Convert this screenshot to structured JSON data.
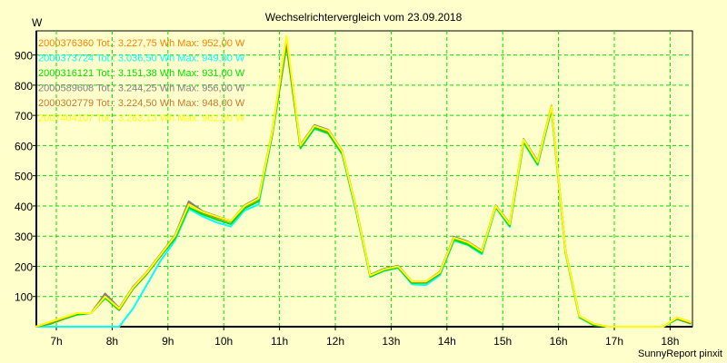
{
  "chart_data": {
    "type": "line",
    "title": "Wechselrichtervergleich vom 23.09.2018",
    "ylabel": "W",
    "xlabel": "",
    "footer": "SunnyReport pinxit",
    "ylim": [
      0,
      980
    ],
    "xlim_hours": [
      6.625,
      18.4
    ],
    "yticks": [
      "100",
      "200",
      "300",
      "400",
      "500",
      "600",
      "700",
      "800",
      "900"
    ],
    "ytick_values": [
      100,
      200,
      300,
      400,
      500,
      600,
      700,
      800,
      900
    ],
    "xticks": [
      "7h",
      "8h",
      "9h",
      "10h",
      "11h",
      "12h",
      "13h",
      "14h",
      "15h",
      "16h",
      "17h",
      "18h"
    ],
    "xtick_values": [
      7,
      8,
      9,
      10,
      11,
      12,
      13,
      14,
      15,
      16,
      17,
      18
    ],
    "grid": true,
    "legend_position": "top-left",
    "x_start_hour": 6.625,
    "x_step_hour": 0.25,
    "series": [
      {
        "name": "2000376360",
        "legend": "2000376360 Tot.: 3.227,75 Wh  Max: 952,00 W",
        "color": "#ff8000",
        "values": [
          0,
          12,
          28,
          45,
          45,
          105,
          58,
          128,
          178,
          238,
          298,
          405,
          378,
          362,
          348,
          398,
          422,
          645,
          952,
          598,
          662,
          645,
          578,
          388,
          170,
          188,
          200,
          148,
          148,
          178,
          292,
          278,
          248,
          398,
          338,
          618,
          540,
          725,
          248,
          33,
          8,
          0,
          0,
          0,
          0,
          0,
          28,
          12
        ]
      },
      {
        "name": "2000373724",
        "legend": "2000373724 Tot.: 3.036,50 Wh  Max: 949,00 W",
        "color": "#00ffff",
        "values": [
          0,
          0,
          0,
          0,
          0,
          0,
          0,
          60,
          140,
          220,
          285,
          390,
          365,
          345,
          332,
          385,
          405,
          640,
          949,
          590,
          655,
          640,
          570,
          380,
          165,
          185,
          195,
          140,
          138,
          170,
          285,
          270,
          240,
          395,
          330,
          610,
          535,
          720,
          245,
          30,
          5,
          0,
          0,
          0,
          0,
          0,
          25,
          10
        ]
      },
      {
        "name": "2000316121",
        "legend": "2000316121 Tot.: 3.151,38 Wh  Max: 931,00 W",
        "color": "#00e000",
        "values": [
          0,
          8,
          25,
          40,
          45,
          95,
          55,
          125,
          175,
          235,
          292,
          395,
          372,
          355,
          340,
          392,
          415,
          640,
          931,
          592,
          658,
          640,
          572,
          384,
          166,
          186,
          196,
          145,
          145,
          175,
          288,
          272,
          244,
          396,
          334,
          612,
          538,
          722,
          246,
          32,
          6,
          0,
          0,
          0,
          0,
          0,
          26,
          10
        ]
      },
      {
        "name": "2000589608",
        "legend": "2000589608 Tot.: 3.244,25 Wh  Max: 956,00 W",
        "color": "#808080",
        "values": [
          0,
          12,
          28,
          45,
          45,
          110,
          62,
          132,
          182,
          242,
          302,
          415,
          382,
          366,
          350,
          402,
          428,
          652,
          956,
          602,
          668,
          652,
          582,
          392,
          172,
          192,
          202,
          150,
          150,
          182,
          298,
          282,
          252,
          402,
          342,
          622,
          548,
          732,
          252,
          35,
          10,
          0,
          0,
          0,
          0,
          0,
          30,
          15
        ]
      },
      {
        "name": "2000302779",
        "legend": "2000302779 Tot.: 3.224,50 Wh  Max: 948,00 W",
        "color": "#c87830",
        "values": [
          0,
          12,
          28,
          45,
          45,
          102,
          58,
          128,
          178,
          238,
          298,
          408,
          378,
          362,
          348,
          398,
          424,
          648,
          948,
          598,
          664,
          648,
          578,
          388,
          170,
          190,
          200,
          148,
          148,
          178,
          294,
          280,
          250,
          400,
          340,
          618,
          544,
          728,
          250,
          34,
          9,
          0,
          0,
          0,
          0,
          0,
          28,
          12
        ]
      },
      {
        "name": "2007404107",
        "legend": "2007404107 Tot.: 3.263,13 Wh  Max: 962,00 W",
        "color": "#ffff00",
        "values": [
          0,
          15,
          30,
          45,
          45,
          100,
          60,
          130,
          180,
          240,
          300,
          405,
          380,
          365,
          350,
          400,
          425,
          650,
          962,
          600,
          665,
          650,
          580,
          390,
          170,
          190,
          200,
          150,
          150,
          180,
          295,
          280,
          250,
          400,
          340,
          620,
          545,
          730,
          250,
          35,
          10,
          0,
          0,
          0,
          0,
          0,
          30,
          15
        ]
      }
    ]
  }
}
